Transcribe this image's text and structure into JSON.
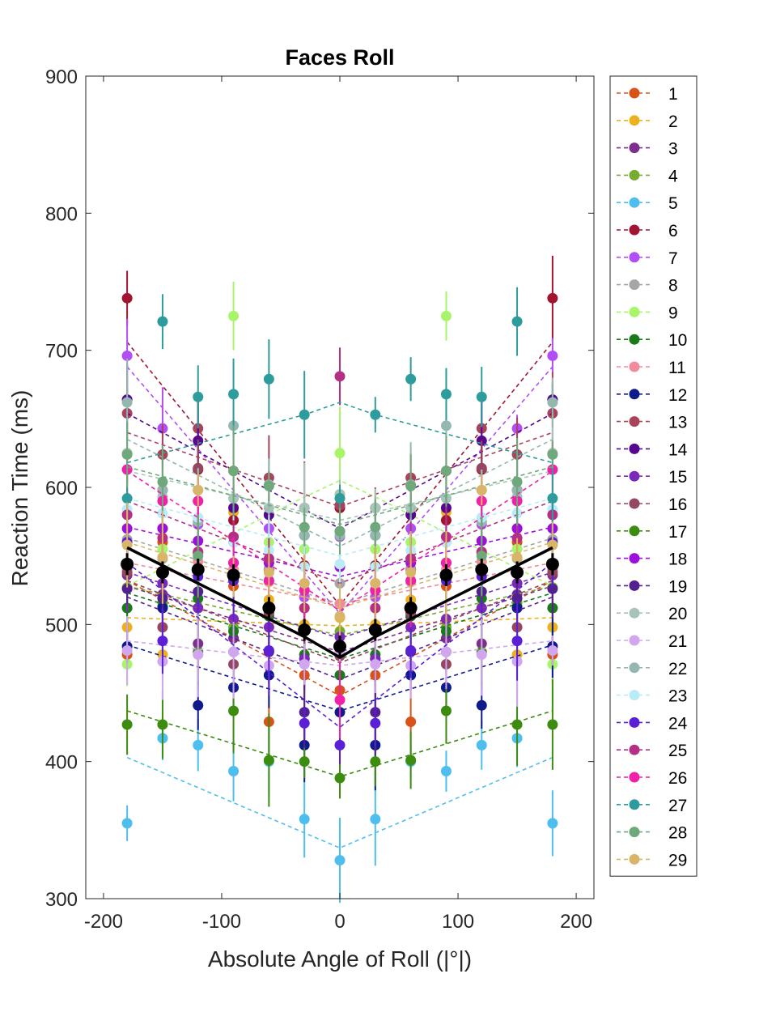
{
  "chart_data": {
    "type": "line",
    "title": "Faces Roll",
    "xlabel": "Absolute Angle of Roll (|°|)",
    "ylabel": "Reaction Time (ms)",
    "xlim": [
      -215,
      215
    ],
    "ylim": [
      300,
      900
    ],
    "xticks": [
      -200,
      -100,
      0,
      100,
      200
    ],
    "yticks": [
      300,
      400,
      500,
      600,
      700,
      800,
      900
    ],
    "grid": false,
    "legend_position": "outside-right",
    "x": [
      -180,
      -150,
      -120,
      -90,
      -60,
      -30,
      0,
      30,
      60,
      90,
      120,
      150,
      180
    ],
    "series": [
      {
        "name": "1",
        "color": "#D95319",
        "values": [
          478,
          560,
          552,
          528,
          429,
          463,
          452,
          463,
          429,
          528,
          552,
          560,
          478
        ],
        "fit": [
          532,
          518,
          504,
          490,
          476,
          462,
          448
        ]
      },
      {
        "name": "2",
        "color": "#EDB120",
        "values": [
          498,
          478,
          598,
          582,
          518,
          500,
          505,
          500,
          518,
          582,
          598,
          478,
          498
        ],
        "fit": [
          505,
          504,
          503,
          502,
          501,
          500,
          499
        ]
      },
      {
        "name": "3",
        "color": "#7E2F8E",
        "values": [
          536,
          522,
          486,
          490,
          508,
          475,
          482,
          475,
          508,
          490,
          486,
          522,
          536
        ],
        "fit": [
          528,
          520,
          512,
          504,
          496,
          488,
          480
        ]
      },
      {
        "name": "4",
        "color": "#77AC30",
        "values": [
          527,
          516,
          512,
          498,
          506,
          512,
          495,
          512,
          506,
          498,
          512,
          516,
          527
        ],
        "fit": [
          528,
          522,
          516,
          510,
          504,
          498,
          492
        ]
      },
      {
        "name": "5",
        "color": "#4DBEEE",
        "values": [
          355,
          417,
          412,
          393,
          400,
          358,
          328,
          358,
          400,
          393,
          412,
          417,
          355
        ],
        "fit": [
          403,
          392,
          381,
          370,
          359,
          348,
          337
        ]
      },
      {
        "name": "6",
        "color": "#A2142F",
        "values": [
          738,
          570,
          613,
          576,
          540,
          543,
          585,
          543,
          540,
          576,
          613,
          570,
          738
        ],
        "fit": [
          706,
          674,
          642,
          610,
          578,
          546,
          514
        ]
      },
      {
        "name": "7",
        "color": "#B14EF5",
        "values": [
          696,
          643,
          573,
          560,
          570,
          520,
          564,
          520,
          570,
          560,
          573,
          643,
          696
        ],
        "fit": [
          688,
          658,
          628,
          598,
          568,
          538,
          508
        ]
      },
      {
        "name": "8",
        "color": "#A6A6A6",
        "values": [
          562,
          548,
          552,
          540,
          541,
          530,
          530,
          530,
          541,
          540,
          552,
          548,
          562
        ],
        "fit": [
          563,
          555,
          547,
          539,
          531,
          523,
          515
        ]
      },
      {
        "name": "9",
        "color": "#A8F56A",
        "values": [
          471,
          555,
          575,
          725,
          560,
          555,
          625,
          555,
          560,
          725,
          575,
          555,
          471
        ],
        "fit": [
          528,
          541,
          554,
          567,
          580,
          593,
          605
        ]
      },
      {
        "name": "10",
        "color": "#1A7A1A",
        "values": [
          512,
          513,
          519,
          495,
          506,
          478,
          463,
          478,
          506,
          495,
          519,
          513,
          512
        ],
        "fit": [
          523,
          515,
          507,
          499,
          491,
          483,
          475
        ]
      },
      {
        "name": "11",
        "color": "#F08C9C",
        "values": [
          540,
          537,
          546,
          540,
          531,
          525,
          515,
          525,
          531,
          540,
          546,
          537,
          540
        ],
        "fit": [
          545,
          540,
          535,
          530,
          525,
          520,
          515
        ]
      },
      {
        "name": "12",
        "color": "#0F1A8C",
        "values": [
          484,
          512,
          441,
          454,
          463,
          412,
          436,
          412,
          463,
          454,
          441,
          512,
          484
        ],
        "fit": [
          485,
          477,
          469,
          461,
          453,
          445,
          437
        ]
      },
      {
        "name": "13",
        "color": "#A8435A",
        "values": [
          654,
          624,
          643,
          612,
          607,
          585,
          587,
          585,
          607,
          612,
          643,
          624,
          654
        ],
        "fit": [
          640,
          631,
          622,
          613,
          604,
          595,
          586
        ]
      },
      {
        "name": "14",
        "color": "#55078F",
        "values": [
          664,
          598,
          634,
          585,
          580,
          565,
          568,
          565,
          580,
          585,
          634,
          598,
          664
        ],
        "fit": [
          654,
          640,
          626,
          612,
          598,
          584,
          570
        ]
      },
      {
        "name": "15",
        "color": "#7A29B8",
        "values": [
          542,
          530,
          512,
          504,
          498,
          475,
          491,
          475,
          498,
          504,
          512,
          530,
          542
        ],
        "fit": [
          538,
          530,
          522,
          514,
          506,
          498,
          490
        ]
      },
      {
        "name": "16",
        "color": "#94475F",
        "values": [
          538,
          498,
          614,
          471,
          509,
          497,
          477,
          497,
          509,
          471,
          614,
          498,
          538
        ],
        "fit": [
          532,
          522,
          512,
          502,
          492,
          482,
          472
        ]
      },
      {
        "name": "17",
        "color": "#3B8C0F",
        "values": [
          427,
          427,
          480,
          437,
          401,
          400,
          388,
          400,
          401,
          437,
          480,
          427,
          427
        ],
        "fit": [
          437,
          429,
          421,
          413,
          405,
          397,
          389
        ]
      },
      {
        "name": "18",
        "color": "#9B10DB",
        "values": [
          570,
          570,
          561,
          545,
          545,
          525,
          542,
          525,
          545,
          545,
          561,
          570,
          570
        ],
        "fit": [
          571,
          565,
          559,
          553,
          547,
          541,
          535
        ]
      },
      {
        "name": "19",
        "color": "#53208F",
        "values": [
          526,
          519,
          524,
          480,
          480,
          436,
          481,
          436,
          480,
          480,
          524,
          519,
          526
        ],
        "fit": [
          520,
          510,
          500,
          490,
          480,
          470,
          460
        ]
      },
      {
        "name": "20",
        "color": "#A6C4B8",
        "values": [
          625,
          593,
          590,
          592,
          585,
          585,
          595,
          585,
          585,
          592,
          590,
          593,
          625
        ],
        "fit": [
          612,
          606,
          600,
          594,
          588,
          582,
          576
        ]
      },
      {
        "name": "21",
        "color": "#D0A6EE",
        "values": [
          481,
          473,
          478,
          480,
          470,
          471,
          480,
          471,
          470,
          480,
          478,
          473,
          481
        ],
        "fit": [
          488,
          485,
          482,
          479,
          476,
          473,
          470
        ]
      },
      {
        "name": "22",
        "color": "#94B8B0",
        "values": [
          662,
          598,
          575,
          645,
          602,
          565,
          565,
          565,
          602,
          645,
          575,
          598,
          662
        ],
        "fit": [
          635,
          622,
          609,
          596,
          583,
          570,
          557
        ]
      },
      {
        "name": "23",
        "color": "#B8ECF8",
        "values": [
          584,
          581,
          578,
          560,
          554,
          542,
          544,
          542,
          554,
          560,
          578,
          581,
          584
        ],
        "fit": [
          592,
          585,
          578,
          571,
          564,
          557,
          550
        ]
      },
      {
        "name": "24",
        "color": "#5A1FD6",
        "values": [
          560,
          488,
          535,
          532,
          481,
          428,
          412,
          428,
          481,
          532,
          535,
          488,
          560
        ],
        "fit": [
          545,
          525,
          505,
          485,
          465,
          445,
          425
        ]
      },
      {
        "name": "25",
        "color": "#B52F84",
        "values": [
          580,
          563,
          553,
          564,
          548,
          512,
          681,
          512,
          548,
          564,
          553,
          563,
          580
        ],
        "fit": [
          590,
          580,
          570,
          560,
          550,
          540,
          530
        ]
      },
      {
        "name": "26",
        "color": "#F21FA8",
        "values": [
          613,
          590,
          590,
          545,
          532,
          525,
          445,
          525,
          532,
          545,
          590,
          590,
          613
        ],
        "fit": [
          612,
          595,
          578,
          561,
          544,
          527,
          510
        ]
      },
      {
        "name": "27",
        "color": "#2E9C9C",
        "values": [
          592,
          721,
          666,
          668,
          679,
          653,
          592,
          653,
          679,
          668,
          666,
          721,
          592
        ],
        "fit": [
          618,
          625,
          632,
          639,
          646,
          653,
          662
        ]
      },
      {
        "name": "28",
        "color": "#6FA87A",
        "values": [
          624,
          604,
          550,
          612,
          601,
          571,
          568,
          571,
          601,
          612,
          550,
          604,
          624
        ],
        "fit": [
          615,
          608,
          601,
          594,
          587,
          580,
          573
        ]
      },
      {
        "name": "29",
        "color": "#D9B56A",
        "values": [
          558,
          549,
          598,
          535,
          538,
          530,
          506,
          530,
          538,
          535,
          598,
          549,
          558
        ],
        "fit": [
          560,
          552,
          544,
          536,
          528,
          520,
          512
        ]
      }
    ],
    "mean": {
      "color": "#000000",
      "values": [
        544,
        538,
        540,
        536,
        512,
        496,
        484,
        496,
        512,
        536,
        540,
        538,
        544
      ],
      "fit": [
        556,
        543,
        530,
        517,
        504,
        491,
        476
      ]
    }
  }
}
